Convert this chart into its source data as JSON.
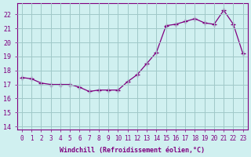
{
  "x": [
    0,
    1,
    2,
    3,
    4,
    5,
    6,
    7,
    8,
    9,
    10,
    11,
    12,
    13,
    14,
    15,
    16,
    17,
    18,
    19,
    20,
    21,
    22,
    23
  ],
  "y": [
    17.5,
    17.4,
    17.1,
    17.0,
    17.0,
    17.0,
    16.8,
    16.5,
    16.6,
    16.6,
    16.6,
    17.2,
    17.7,
    18.5,
    19.3,
    21.2,
    21.3,
    21.5,
    21.7,
    21.4,
    21.3,
    22.3,
    21.3,
    19.2
  ],
  "line_color": "#800080",
  "bg_color": "#d0f0f0",
  "grid_color": "#a0c8c8",
  "xlabel": "Windchill (Refroidissement éolien,°C)",
  "ylabel_ticks": [
    14,
    15,
    16,
    17,
    18,
    19,
    20,
    21,
    22
  ],
  "xlim": [
    -0.5,
    23.5
  ],
  "ylim": [
    13.8,
    22.8
  ]
}
